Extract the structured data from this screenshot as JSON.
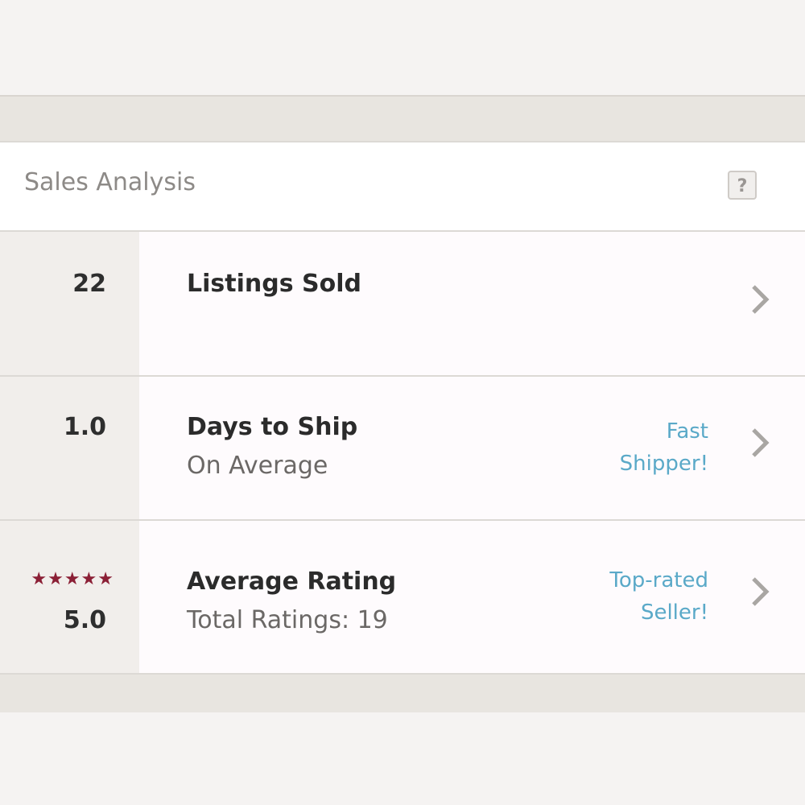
{
  "header": {
    "title": "Sales Analysis",
    "help": "?"
  },
  "rows": [
    {
      "value": "22",
      "title": "Listings Sold"
    },
    {
      "value": "1.0",
      "title": "Days to Ship",
      "subtitle": "On Average",
      "badge": "Fast Shipper!"
    },
    {
      "value": "5.0",
      "title": "Average Rating",
      "subtitle": "Total Ratings: 19",
      "badge": "Top-rated Seller!"
    }
  ]
}
